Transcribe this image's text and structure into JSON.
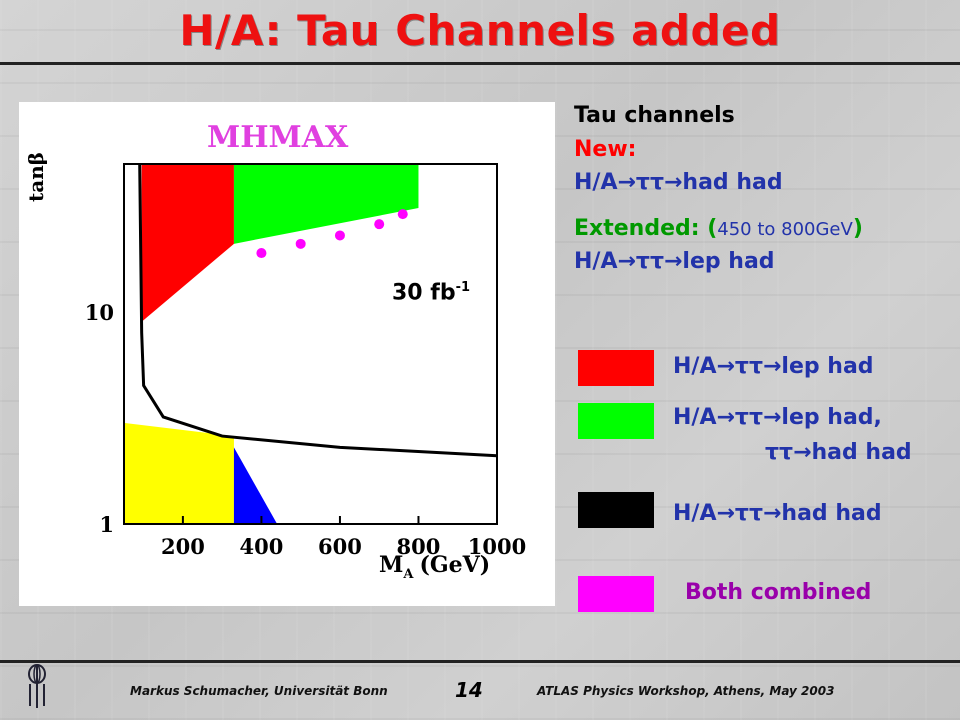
{
  "slide": {
    "title": "H/A: Tau Channels added",
    "annotation": "30 fb",
    "annotation_sup": "-1"
  },
  "chart_data": {
    "type": "area",
    "title": "MHMAX",
    "xlabel": "M",
    "xlabel_sub": "A",
    "xlabel_unit": "(GeV)",
    "ylabel": "tanβ",
    "x_scale": "linear",
    "y_scale": "log",
    "xlim": [
      50,
      1000
    ],
    "ylim": [
      1,
      50
    ],
    "x_ticks": [
      200,
      400,
      600,
      800,
      1000
    ],
    "y_ticks": [
      1,
      10
    ],
    "grid": false,
    "series": [
      {
        "name": "H/A→ττ→lep had",
        "color": "#ff0000",
        "region": [
          [
            95,
            50
          ],
          [
            330,
            50
          ],
          [
            330,
            21
          ],
          [
            95,
            9
          ]
        ]
      },
      {
        "name": "H/A→ττ→lep had, ττ→had had",
        "color": "#00ff00",
        "region": [
          [
            330,
            50
          ],
          [
            800,
            50
          ],
          [
            800,
            31
          ],
          [
            330,
            21
          ]
        ]
      },
      {
        "name": "H/A→ττ→had had",
        "color": "#000000",
        "line": [
          [
            90,
            50
          ],
          [
            95,
            8
          ],
          [
            100,
            4.5
          ],
          [
            150,
            3.2
          ],
          [
            300,
            2.6
          ],
          [
            600,
            2.3
          ],
          [
            1000,
            2.1
          ]
        ]
      },
      {
        "name": "Both combined",
        "color": "#ff00ff",
        "points": [
          [
            400,
            19
          ],
          [
            500,
            21
          ],
          [
            600,
            23
          ],
          [
            700,
            26
          ],
          [
            760,
            29
          ]
        ]
      },
      {
        "color": "#ffff00",
        "region": [
          [
            50,
            3
          ],
          [
            330,
            2.6
          ],
          [
            330,
            1
          ],
          [
            50,
            1
          ]
        ]
      },
      {
        "color": "#0000ff",
        "region": [
          [
            330,
            2.3
          ],
          [
            440,
            1
          ],
          [
            330,
            1
          ]
        ]
      }
    ]
  },
  "text": {
    "heading": "Tau channels",
    "new_label": "New:",
    "new_channel": "H/A→ττ→had had",
    "extended_label": "Extended: (",
    "extended_range": "450 to 800GeV",
    "extended_close": ")",
    "extended_channel": "H/A→ττ→lep had"
  },
  "legend": {
    "items": [
      {
        "color": "#ff0000",
        "label": "H/A→ττ→lep had"
      },
      {
        "color": "#00ff00",
        "label": "H/A→ττ→lep had,",
        "label2": "ττ→had had"
      },
      {
        "color": "#000000",
        "label": "H/A→ττ→had had"
      },
      {
        "color": "#ff00ff",
        "label": "Both combined"
      }
    ]
  },
  "footer": {
    "left": "Markus Schumacher,  Universität Bonn",
    "page": "14",
    "right": "ATLAS Physics Workshop, Athens, May 2003"
  },
  "colors": {
    "title": "#ee1111",
    "heading": "#000000",
    "new": "#ff0000",
    "channel": "#2233aa",
    "extended": "#009900",
    "combined": "#9900aa"
  }
}
